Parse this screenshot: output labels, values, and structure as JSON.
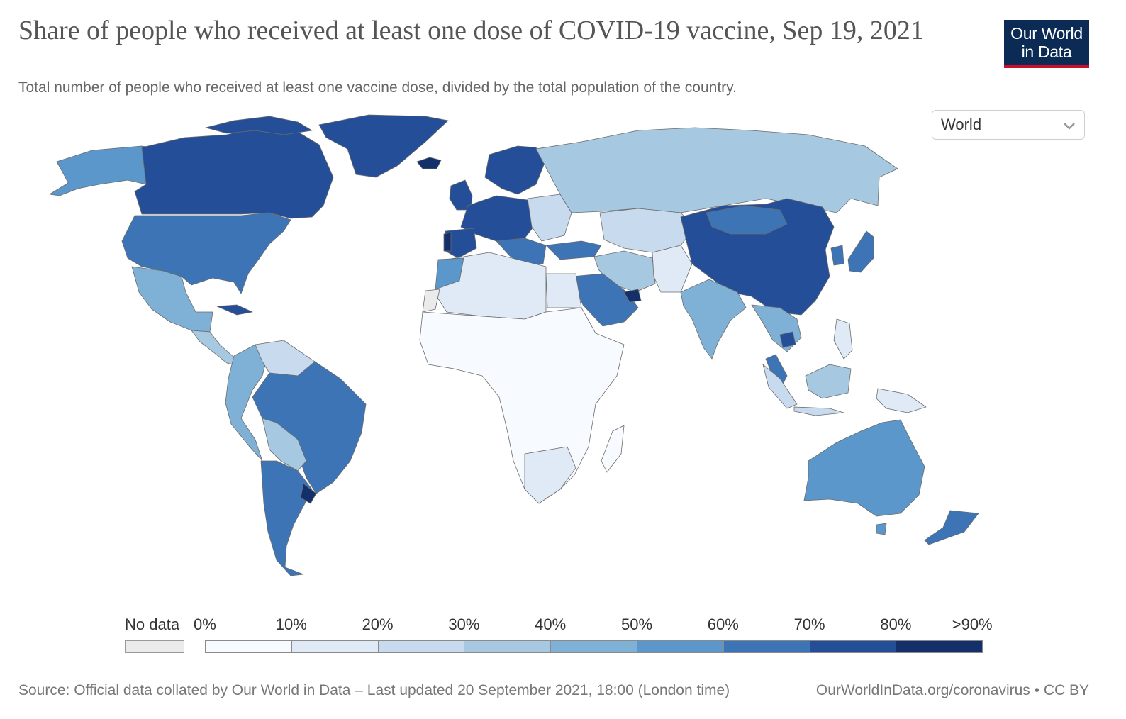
{
  "header": {
    "title": "Share of people who received at least one dose of COVID-19 vaccine, Sep 19, 2021",
    "subtitle": "Total number of people who received at least one vaccine dose, divided by the total population of the country."
  },
  "logo": {
    "line1": "Our World",
    "line2": "in Data"
  },
  "region_select": {
    "value": "World"
  },
  "legend": {
    "no_data_label": "No data",
    "no_data_color": "#ebebeb",
    "tick_labels": [
      "0%",
      "10%",
      "20%",
      "30%",
      "40%",
      "50%",
      "60%",
      "70%",
      "80%",
      ">90%"
    ],
    "colors": [
      "#f7fbff",
      "#dfeaf6",
      "#c7daee",
      "#a6c8e0",
      "#7fb0d6",
      "#5b97cb",
      "#3d74b5",
      "#244f98",
      "#14306b"
    ]
  },
  "map_colors": {
    "ocean": "#ffffff",
    "border": "#6b6b6b"
  },
  "footer": {
    "source": "Source: Official data collated by Our World in Data – Last updated 20 September 2021, 18:00 (London time)",
    "url": "OurWorldInData.org/coronavirus • CC BY"
  }
}
